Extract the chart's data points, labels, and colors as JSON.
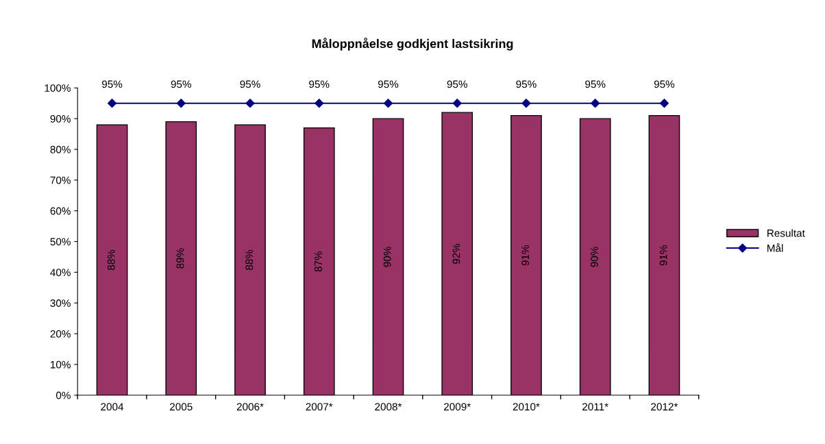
{
  "chart_data": {
    "type": "bar",
    "title": "Måloppnåelse godkjent lastsikring",
    "categories": [
      "2004",
      "2005",
      "2006*",
      "2007*",
      "2008*",
      "2009*",
      "2010*",
      "2011*",
      "2012*"
    ],
    "series": [
      {
        "name": "Resultat",
        "color": "#993366",
        "values": [
          88,
          89,
          88,
          87,
          90,
          92,
          91,
          90,
          91
        ],
        "value_labels": [
          "88%",
          "89%",
          "88%",
          "87%",
          "90%",
          "92%",
          "91%",
          "90%",
          "91%"
        ]
      },
      {
        "name": "Mål",
        "type": "line",
        "color": "#000080",
        "marker": "diamond",
        "values": [
          95,
          95,
          95,
          95,
          95,
          95,
          95,
          95,
          95
        ],
        "value_labels": [
          "95%",
          "95%",
          "95%",
          "95%",
          "95%",
          "95%",
          "95%",
          "95%",
          "95%"
        ]
      }
    ],
    "ylim": [
      0,
      100
    ],
    "yticks": [
      {
        "value": 0,
        "label": "0%"
      },
      {
        "value": 10,
        "label": "10%"
      },
      {
        "value": 20,
        "label": "20%"
      },
      {
        "value": 30,
        "label": "30%"
      },
      {
        "value": 40,
        "label": "40%"
      },
      {
        "value": 50,
        "label": "50%"
      },
      {
        "value": 60,
        "label": "60%"
      },
      {
        "value": 70,
        "label": "70%"
      },
      {
        "value": 80,
        "label": "80%"
      },
      {
        "value": 90,
        "label": "90%"
      },
      {
        "value": 100,
        "label": "100%"
      }
    ],
    "grid": false,
    "legend": "right"
  }
}
